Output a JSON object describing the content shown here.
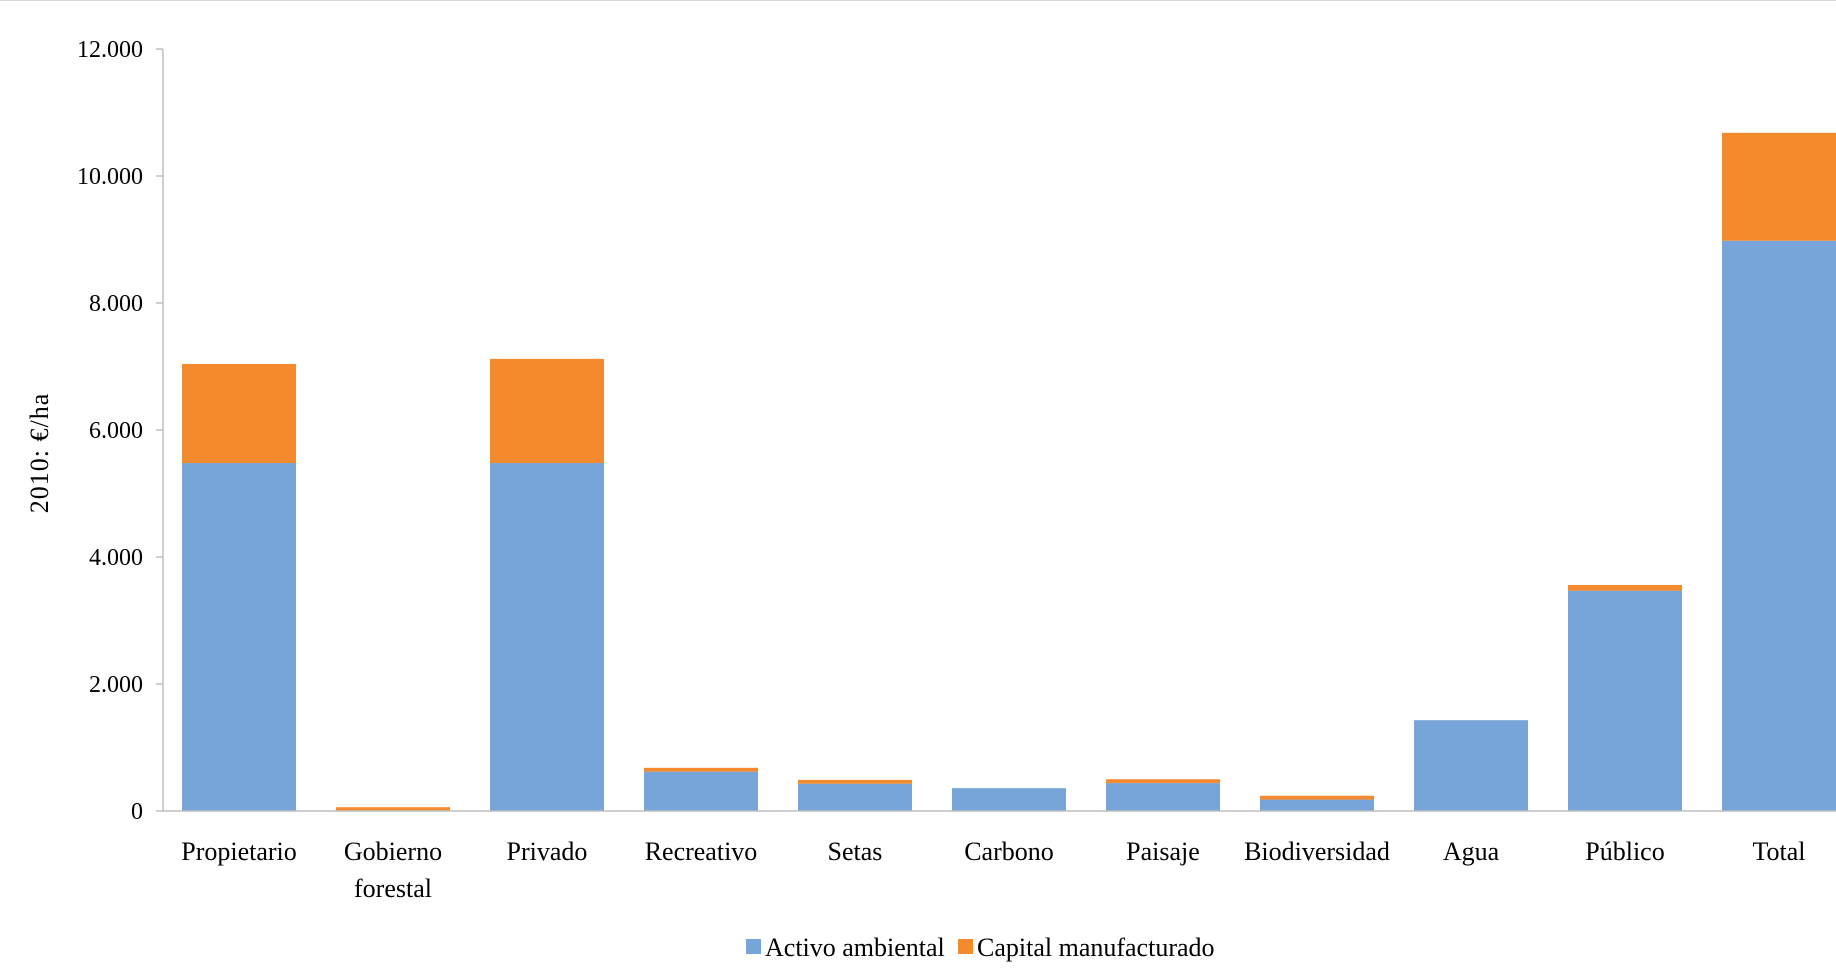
{
  "chart_data": {
    "type": "bar",
    "stacked": true,
    "title": "",
    "xlabel": "",
    "ylabel": "2010: €/ha",
    "ylim": [
      0,
      12000
    ],
    "yticks": [
      0,
      2000,
      4000,
      6000,
      8000,
      10000,
      12000
    ],
    "ytick_labels": [
      "0",
      "2.000",
      "4.000",
      "6.000",
      "8.000",
      "10.000",
      "12.000"
    ],
    "categories": [
      "Propietario",
      "Gobierno forestal",
      "Privado",
      "Recreativo",
      "Setas",
      "Carbono",
      "Paisaje",
      "Biodiversidad",
      "Agua",
      "Público",
      "Total"
    ],
    "category_lines": [
      [
        "Propietario"
      ],
      [
        "Gobierno",
        "forestal"
      ],
      [
        "Privado"
      ],
      [
        "Recreativo"
      ],
      [
        "Setas"
      ],
      [
        "Carbono"
      ],
      [
        "Paisaje"
      ],
      [
        "Biodiversidad"
      ],
      [
        "Agua"
      ],
      [
        "Público"
      ],
      [
        "Total"
      ]
    ],
    "series": [
      {
        "name": "Activo ambiental",
        "color": "#77a5da",
        "values": [
          5480,
          0,
          5480,
          620,
          430,
          360,
          440,
          180,
          1430,
          3470,
          8980
        ]
      },
      {
        "name": "Capital manufacturado",
        "color": "#f38a2e",
        "values": [
          1560,
          60,
          1640,
          60,
          60,
          0,
          60,
          60,
          0,
          90,
          1700
        ]
      }
    ],
    "grid": false,
    "legend_position": "bottom"
  }
}
